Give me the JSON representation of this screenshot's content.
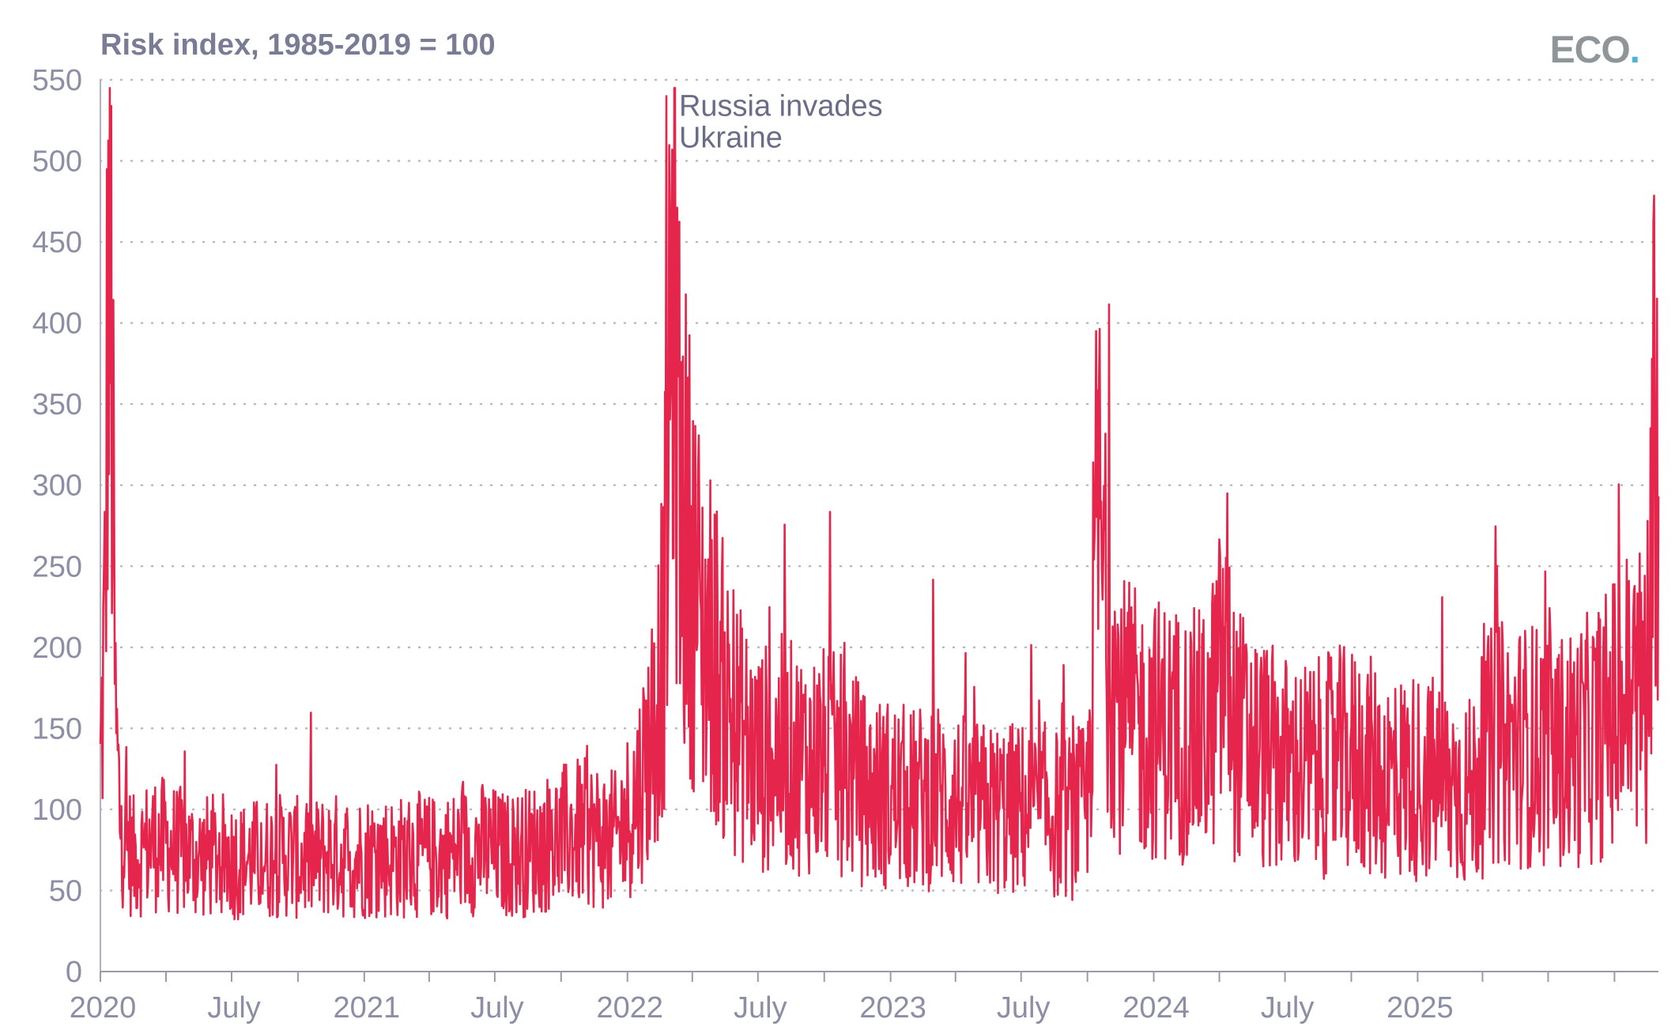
{
  "header": {
    "axis_title": "Risk index, 1985-2019 = 100",
    "logo_text": "ECO",
    "logo_dot": "."
  },
  "colors": {
    "series": "#e5254b",
    "axis_text": "#8c8ea6",
    "grid": "#b8b8c4",
    "annotation": "#6b6d88",
    "logo": "#8e9699",
    "logo_dot": "#4fb3d9"
  },
  "chart_data": {
    "type": "line",
    "title": "",
    "ylabel": "Risk index, 1985-2019 = 100",
    "xlabel": "",
    "ylim": [
      0,
      550
    ],
    "yticks": [
      0,
      50,
      100,
      150,
      200,
      250,
      300,
      350,
      400,
      450,
      500,
      550
    ],
    "xlim": [
      "2020-01-01",
      "2025-12-01"
    ],
    "xtick_labels": [
      {
        "date": "2020-01-01",
        "label": "2020"
      },
      {
        "date": "2020-07-01",
        "label": "July"
      },
      {
        "date": "2021-01-01",
        "label": "2021"
      },
      {
        "date": "2021-07-01",
        "label": "July"
      },
      {
        "date": "2022-01-01",
        "label": "2022"
      },
      {
        "date": "2022-07-01",
        "label": "July"
      },
      {
        "date": "2023-01-01",
        "label": "2023"
      },
      {
        "date": "2023-07-01",
        "label": "July"
      },
      {
        "date": "2024-01-01",
        "label": "2024"
      },
      {
        "date": "2024-07-01",
        "label": "July"
      },
      {
        "date": "2025-01-01",
        "label": "2025"
      }
    ],
    "grid": true,
    "legend": "none",
    "annotations": [
      {
        "date": "2022-02-24",
        "value": 540,
        "lines": [
          "Russia invades",
          "Ukraine"
        ]
      }
    ],
    "series": [
      {
        "points": [
          [
            "2020-01-01",
            120
          ],
          [
            "2020-01-08",
            230
          ],
          [
            "2020-01-11",
            412
          ],
          [
            "2020-01-16",
            395
          ],
          [
            "2020-01-22",
            150
          ],
          [
            "2020-01-29",
            90
          ],
          [
            "2020-02-15",
            70
          ],
          [
            "2020-03-15",
            80
          ],
          [
            "2020-04-15",
            75
          ],
          [
            "2020-05-15",
            70
          ],
          [
            "2020-06-15",
            72
          ],
          [
            "2020-07-15",
            68
          ],
          [
            "2020-08-15",
            70
          ],
          [
            "2020-09-15",
            72
          ],
          [
            "2020-10-15",
            68
          ],
          [
            "2020-11-15",
            72
          ],
          [
            "2020-12-15",
            70
          ],
          [
            "2021-01-15",
            72
          ],
          [
            "2021-02-15",
            70
          ],
          [
            "2021-03-15",
            72
          ],
          [
            "2021-04-15",
            70
          ],
          [
            "2021-05-15",
            74
          ],
          [
            "2021-06-15",
            76
          ],
          [
            "2021-07-15",
            72
          ],
          [
            "2021-08-15",
            74
          ],
          [
            "2021-09-15",
            80
          ],
          [
            "2021-10-15",
            85
          ],
          [
            "2021-11-15",
            85
          ],
          [
            "2021-12-15",
            80
          ],
          [
            "2022-01-15",
            110
          ],
          [
            "2022-02-01",
            140
          ],
          [
            "2022-02-20",
            200
          ],
          [
            "2022-02-28",
            330
          ],
          [
            "2022-03-05",
            450
          ],
          [
            "2022-03-15",
            300
          ],
          [
            "2022-04-01",
            250
          ],
          [
            "2022-04-15",
            210
          ],
          [
            "2022-05-01",
            200
          ],
          [
            "2022-05-15",
            170
          ],
          [
            "2022-06-01",
            150
          ],
          [
            "2022-07-01",
            130
          ],
          [
            "2022-08-01",
            135
          ],
          [
            "2022-09-01",
            130
          ],
          [
            "2022-10-01",
            130
          ],
          [
            "2022-11-01",
            125
          ],
          [
            "2022-12-01",
            110
          ],
          [
            "2023-01-01",
            110
          ],
          [
            "2023-02-01",
            105
          ],
          [
            "2023-03-01",
            110
          ],
          [
            "2023-04-01",
            105
          ],
          [
            "2023-05-01",
            100
          ],
          [
            "2023-06-01",
            100
          ],
          [
            "2023-07-01",
            100
          ],
          [
            "2023-08-01",
            100
          ],
          [
            "2023-09-01",
            95
          ],
          [
            "2023-10-01",
            100
          ],
          [
            "2023-10-10",
            220
          ],
          [
            "2023-10-15",
            300
          ],
          [
            "2023-10-25",
            220
          ],
          [
            "2023-11-15",
            160
          ],
          [
            "2023-12-15",
            150
          ],
          [
            "2024-01-15",
            150
          ],
          [
            "2024-02-15",
            145
          ],
          [
            "2024-03-15",
            145
          ],
          [
            "2024-04-13",
            200
          ],
          [
            "2024-04-20",
            150
          ],
          [
            "2024-05-15",
            140
          ],
          [
            "2024-06-15",
            130
          ],
          [
            "2024-07-15",
            125
          ],
          [
            "2024-08-15",
            125
          ],
          [
            "2024-09-15",
            130
          ],
          [
            "2024-10-15",
            130
          ],
          [
            "2024-11-15",
            120
          ],
          [
            "2024-12-15",
            120
          ],
          [
            "2025-01-15",
            120
          ],
          [
            "2025-02-15",
            115
          ],
          [
            "2025-03-15",
            110
          ],
          [
            "2025-04-15",
            140
          ],
          [
            "2025-05-15",
            140
          ],
          [
            "2025-06-15",
            140
          ],
          [
            "2025-07-15",
            135
          ],
          [
            "2025-08-15",
            140
          ],
          [
            "2025-09-15",
            150
          ],
          [
            "2025-10-15",
            170
          ],
          [
            "2025-11-15",
            175
          ],
          [
            "2025-11-28",
            390
          ],
          [
            "2025-12-01",
            260
          ]
        ]
      }
    ]
  }
}
